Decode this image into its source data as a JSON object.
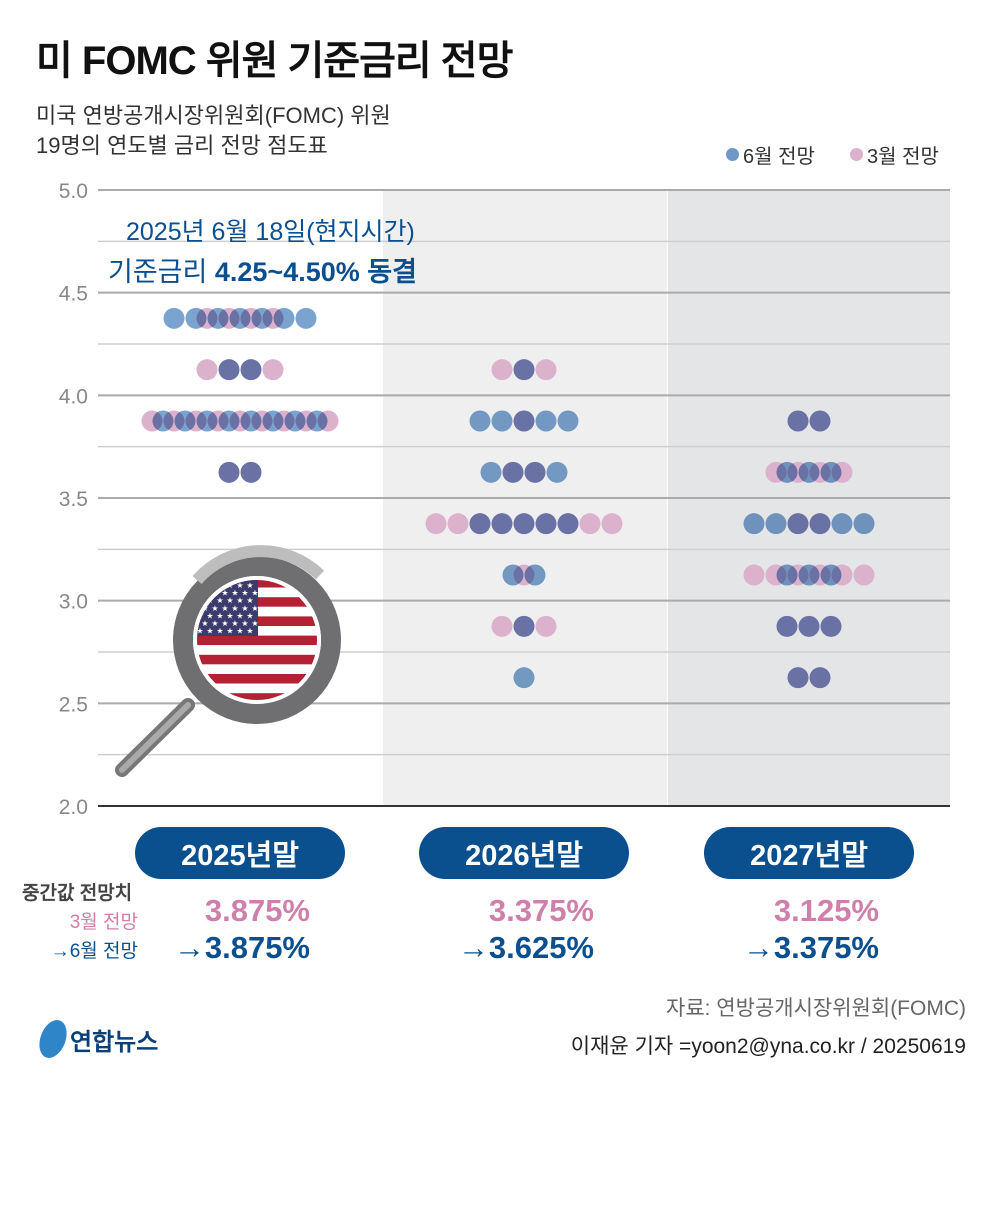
{
  "title": "미 FOMC 위원 기준금리 전망",
  "subtitle": [
    "미국 연방공개시장위원회(FOMC) 위원",
    "19명의 연도별 금리 전망 점도표"
  ],
  "legend": [
    {
      "label": "6월 전망",
      "color": "#7ba3cf"
    },
    {
      "label": "3월 전망",
      "color": "#dcb1cc"
    }
  ],
  "annotation": {
    "line1": "2025년 6월 18일(현지시간)",
    "line2_prefix": "기준금리 ",
    "line2_bold": "4.25~4.50% 동결"
  },
  "medians": {
    "label": "중간값 전망치",
    "march_label": "3월 전망",
    "june_label": "→6월 전망",
    "march": [
      "3.875%",
      "3.375%",
      "3.125%"
    ],
    "june": [
      "→3.875%",
      "→3.625%",
      "→3.375%"
    ]
  },
  "footer": {
    "source": "자료: 연방공개시장위원회(FOMC)",
    "credit": "이재윤 기자 =yoon2@yna.co.kr / 20250619",
    "logo": "연합뉴스"
  },
  "chart_data": {
    "type": "scatter",
    "subtype": "dot-plot",
    "categories": [
      "2025년말",
      "2026년말",
      "2027년말"
    ],
    "ylim": [
      2.0,
      5.0
    ],
    "yticks": [
      "5.0",
      "4.5",
      "4.0",
      "3.5",
      "3.0",
      "2.5",
      "2.0"
    ],
    "grid": true,
    "legend_position": "top-right",
    "series": [
      {
        "name": "6월 전망",
        "color": "#7ba3cf",
        "counts": [
          {
            "4.375": 7,
            "4.125": 2,
            "3.875": 8,
            "3.625": 2
          },
          {
            "4.125": 1,
            "3.875": 5,
            "3.625": 4,
            "3.375": 5,
            "3.125": 2,
            "2.875": 1,
            "2.625": 1
          },
          {
            "3.875": 2,
            "3.625": 3,
            "3.375": 6,
            "3.125": 3,
            "2.875": 3,
            "2.625": 2
          }
        ]
      },
      {
        "name": "3월 전망",
        "color": "#dcb1cc",
        "counts": [
          {
            "4.375": 4,
            "4.125": 4,
            "3.875": 9,
            "3.625": 2
          },
          {
            "4.125": 3,
            "3.875": 1,
            "3.625": 2,
            "3.375": 9,
            "3.125": 1,
            "2.875": 3
          },
          {
            "3.875": 2,
            "3.625": 4,
            "3.375": 2,
            "3.125": 6,
            "2.875": 3,
            "2.625": 2
          }
        ]
      }
    ]
  }
}
